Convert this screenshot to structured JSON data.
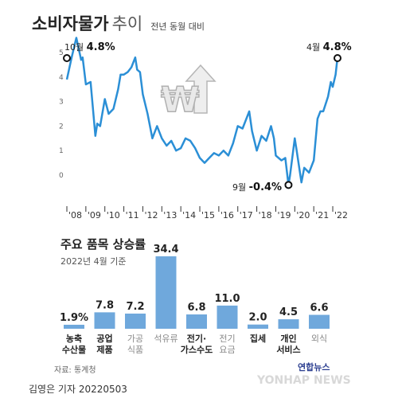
{
  "title": {
    "main": "소비자물가",
    "suffix": "추이",
    "subtitle": "전년 동월 대비"
  },
  "chart_data": [
    {
      "type": "line",
      "title": "소비자물가 추이",
      "subtitle": "전년 동월 대비",
      "ylabel": "",
      "xlabel": "",
      "ylim": [
        -0.8,
        5.0
      ],
      "yticks": [
        "5",
        "4",
        "3",
        "2",
        "1",
        "0"
      ],
      "xticks": [
        "'08",
        "'09",
        "'10",
        "'11",
        "'12",
        "'13",
        "'14",
        "'15",
        "'16",
        "'17",
        "'18",
        "'19",
        "'20",
        "'21",
        "'22"
      ],
      "grid": false,
      "color": "#2b8fd6",
      "annotations": [
        {
          "label": "10월",
          "value": "4.8%"
        },
        {
          "label": "9월",
          "value": "-0.4%"
        },
        {
          "label": "4월",
          "value": "4.8%"
        }
      ],
      "series": [
        {
          "x": [
            2008.0,
            2008.25,
            2008.5,
            2008.75,
            2008.83,
            2009.0,
            2009.25,
            2009.5,
            2009.6,
            2009.75,
            2010.0,
            2010.2,
            2010.45,
            2010.7,
            2010.83,
            2011.0,
            2011.2,
            2011.4,
            2011.6,
            2011.7,
            2011.85,
            2012.0,
            2012.25,
            2012.5,
            2012.75,
            2013.0,
            2013.25,
            2013.5,
            2013.75,
            2014.0,
            2014.25,
            2014.5,
            2014.75,
            2015.0,
            2015.25,
            2015.5,
            2015.75,
            2016.0,
            2016.25,
            2016.5,
            2016.75,
            2017.0,
            2017.25,
            2017.6,
            2017.75,
            2018.0,
            2018.25,
            2018.5,
            2018.75,
            2018.9,
            2019.0,
            2019.3,
            2019.5,
            2019.67,
            2019.75,
            2020.0,
            2020.1,
            2020.35,
            2020.5,
            2020.75,
            2021.0,
            2021.2,
            2021.35,
            2021.5,
            2021.75,
            2021.9,
            2022.0,
            2022.15,
            2022.25
          ],
          "values": [
            3.9,
            4.8,
            5.6,
            4.7,
            4.8,
            3.7,
            3.8,
            1.6,
            2.1,
            2.0,
            3.1,
            2.5,
            2.7,
            3.5,
            4.1,
            4.1,
            4.2,
            4.4,
            4.8,
            4.3,
            4.2,
            3.3,
            2.5,
            1.5,
            2.0,
            1.5,
            1.2,
            1.4,
            1.0,
            1.1,
            1.5,
            1.4,
            1.1,
            0.7,
            0.5,
            0.7,
            0.9,
            0.8,
            1.0,
            0.8,
            1.3,
            2.0,
            1.9,
            2.6,
            1.8,
            1.0,
            1.6,
            1.4,
            2.0,
            1.5,
            0.8,
            0.6,
            0.7,
            -0.4,
            0.0,
            1.5,
            1.0,
            -0.3,
            0.3,
            0.1,
            0.6,
            2.3,
            2.6,
            2.6,
            3.2,
            3.8,
            3.6,
            4.1,
            4.8
          ]
        }
      ]
    },
    {
      "type": "bar",
      "title": "주요 품목 상승률",
      "subtitle": "2022년 4월 기준",
      "categories": [
        [
          "농축",
          "수산물"
        ],
        [
          "공업",
          "제품"
        ],
        [
          "가공",
          "식품"
        ],
        [
          "석유류"
        ],
        [
          "전기·",
          "가스수도"
        ],
        [
          "전기",
          "요금"
        ],
        [
          "집세"
        ],
        [
          "개인",
          "서비스"
        ],
        [
          "외식"
        ]
      ],
      "values": [
        1.9,
        7.8,
        7.2,
        34.4,
        6.8,
        11.0,
        2.0,
        4.5,
        6.6
      ],
      "value_labels": [
        "1.9%",
        "7.8",
        "7.2",
        "34.4",
        "6.8",
        "11.0",
        "2.0",
        "4.5",
        "6.6"
      ],
      "category_bold": [
        true,
        true,
        false,
        false,
        true,
        false,
        true,
        true,
        false
      ],
      "color": "#6fa8dc",
      "ylim": [
        0,
        34.4
      ]
    }
  ],
  "footer": {
    "source": "자료: 통계청",
    "credit": "김영은 기자  20220503"
  },
  "watermark": {
    "logo": "연합뉴스",
    "text": "YONHAP NEWS"
  },
  "colors": {
    "line": "#2b8fd6",
    "bar": "#6fa8dc",
    "bold_label": "#222222",
    "light_label": "#8a8a8a"
  },
  "icons": [
    "won-price-up-icon"
  ]
}
